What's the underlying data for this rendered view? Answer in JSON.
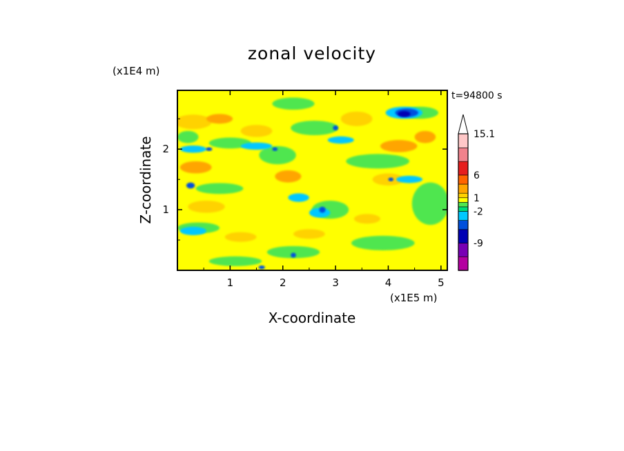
{
  "chart_data": {
    "type": "heatmap",
    "title": "zonal velocity",
    "xlabel": "X-coordinate",
    "ylabel": "Z-coordinate",
    "x_scale_label": "(x1E5 m)",
    "y_scale_label": "(x1E4 m)",
    "time_label": "t=94800 s",
    "x_ticks": [
      "1",
      "2",
      "3",
      "4",
      "5"
    ],
    "y_ticks": [
      "1",
      "2"
    ],
    "xlim": [
      0,
      5.12
    ],
    "ylim": [
      0,
      2.97
    ],
    "x_tick_values": [
      1,
      2,
      3,
      4,
      5
    ],
    "y_tick_values": [
      1,
      2
    ],
    "colorbar": {
      "labels": [
        "15.1",
        "6",
        "1",
        "-2",
        "-9"
      ],
      "label_values": [
        15.1,
        6,
        1,
        -2,
        -9
      ],
      "levels": [
        -15,
        -12,
        -9,
        -6,
        -4,
        -2,
        -1,
        0,
        1,
        2,
        4,
        6,
        9,
        12,
        15.1
      ],
      "colors": [
        "#e600b4",
        "#b400a0",
        "#7800b4",
        "#0000b4",
        "#0050dc",
        "#00c8ff",
        "#00dc78",
        "#50e650",
        "#ffff00",
        "#ffd200",
        "#ffa500",
        "#ff6400",
        "#e61e1e",
        "#f0828c",
        "#ffc8c8"
      ],
      "extend": "max"
    },
    "field": {
      "background_color": "#ffff00",
      "patches": [
        {
          "x": 0.3,
          "z": 2.45,
          "rx": 0.35,
          "rz": 0.12,
          "color": "#ffd200"
        },
        {
          "x": 0.8,
          "z": 2.5,
          "rx": 0.25,
          "rz": 0.08,
          "color": "#ffa500"
        },
        {
          "x": 0.35,
          "z": 1.7,
          "rx": 0.3,
          "rz": 0.1,
          "color": "#ffa500"
        },
        {
          "x": 0.55,
          "z": 1.05,
          "rx": 0.35,
          "rz": 0.1,
          "color": "#ffd200"
        },
        {
          "x": 1.5,
          "z": 2.3,
          "rx": 0.3,
          "rz": 0.1,
          "color": "#ffd200"
        },
        {
          "x": 2.1,
          "z": 1.55,
          "rx": 0.25,
          "rz": 0.1,
          "color": "#ffa500"
        },
        {
          "x": 2.5,
          "z": 0.6,
          "rx": 0.3,
          "rz": 0.08,
          "color": "#ffd200"
        },
        {
          "x": 3.4,
          "z": 2.5,
          "rx": 0.3,
          "rz": 0.12,
          "color": "#ffd200"
        },
        {
          "x": 4.2,
          "z": 2.05,
          "rx": 0.35,
          "rz": 0.1,
          "color": "#ffa500"
        },
        {
          "x": 4.7,
          "z": 2.2,
          "rx": 0.2,
          "rz": 0.1,
          "color": "#ffa500"
        },
        {
          "x": 4.0,
          "z": 1.5,
          "rx": 0.3,
          "rz": 0.1,
          "color": "#ffd200"
        },
        {
          "x": 3.6,
          "z": 0.85,
          "rx": 0.25,
          "rz": 0.08,
          "color": "#ffd200"
        },
        {
          "x": 1.2,
          "z": 0.55,
          "rx": 0.3,
          "rz": 0.08,
          "color": "#ffd200"
        },
        {
          "x": 0.2,
          "z": 2.2,
          "rx": 0.2,
          "rz": 0.1,
          "color": "#50e650"
        },
        {
          "x": 1.0,
          "z": 2.1,
          "rx": 0.4,
          "rz": 0.09,
          "color": "#50e650"
        },
        {
          "x": 0.8,
          "z": 1.35,
          "rx": 0.45,
          "rz": 0.09,
          "color": "#50e650"
        },
        {
          "x": 0.4,
          "z": 0.7,
          "rx": 0.4,
          "rz": 0.09,
          "color": "#50e650"
        },
        {
          "x": 1.9,
          "z": 1.9,
          "rx": 0.35,
          "rz": 0.15,
          "color": "#50e650"
        },
        {
          "x": 2.6,
          "z": 2.35,
          "rx": 0.45,
          "rz": 0.12,
          "color": "#50e650"
        },
        {
          "x": 3.8,
          "z": 1.8,
          "rx": 0.6,
          "rz": 0.12,
          "color": "#50e650"
        },
        {
          "x": 4.8,
          "z": 1.1,
          "rx": 0.35,
          "rz": 0.35,
          "color": "#50e650"
        },
        {
          "x": 3.9,
          "z": 0.45,
          "rx": 0.6,
          "rz": 0.12,
          "color": "#50e650"
        },
        {
          "x": 2.2,
          "z": 0.3,
          "rx": 0.5,
          "rz": 0.1,
          "color": "#50e650"
        },
        {
          "x": 1.1,
          "z": 0.15,
          "rx": 0.5,
          "rz": 0.08,
          "color": "#50e650"
        },
        {
          "x": 2.9,
          "z": 1.0,
          "rx": 0.35,
          "rz": 0.15,
          "color": "#50e650"
        },
        {
          "x": 4.6,
          "z": 2.6,
          "rx": 0.35,
          "rz": 0.1,
          "color": "#50e650"
        },
        {
          "x": 2.2,
          "z": 2.75,
          "rx": 0.4,
          "rz": 0.1,
          "color": "#50e650"
        },
        {
          "x": 0.3,
          "z": 2.0,
          "rx": 0.25,
          "rz": 0.06,
          "color": "#00c8ff"
        },
        {
          "x": 1.5,
          "z": 2.05,
          "rx": 0.3,
          "rz": 0.06,
          "color": "#00c8ff"
        },
        {
          "x": 0.3,
          "z": 0.65,
          "rx": 0.25,
          "rz": 0.07,
          "color": "#00c8ff"
        },
        {
          "x": 2.3,
          "z": 1.2,
          "rx": 0.2,
          "rz": 0.07,
          "color": "#00c8ff"
        },
        {
          "x": 3.1,
          "z": 2.15,
          "rx": 0.25,
          "rz": 0.06,
          "color": "#00c8ff"
        },
        {
          "x": 4.3,
          "z": 2.6,
          "rx": 0.35,
          "rz": 0.1,
          "color": "#00c8ff"
        },
        {
          "x": 4.4,
          "z": 1.5,
          "rx": 0.25,
          "rz": 0.06,
          "color": "#00c8ff"
        },
        {
          "x": 2.7,
          "z": 0.95,
          "rx": 0.2,
          "rz": 0.08,
          "color": "#00c8ff"
        },
        {
          "x": 4.35,
          "z": 2.6,
          "rx": 0.22,
          "rz": 0.07,
          "color": "#0050dc"
        },
        {
          "x": 4.3,
          "z": 2.58,
          "rx": 0.12,
          "rz": 0.05,
          "color": "#0000b4"
        },
        {
          "x": 0.25,
          "z": 1.4,
          "rx": 0.08,
          "rz": 0.05,
          "color": "#0050dc"
        },
        {
          "x": 0.6,
          "z": 2.0,
          "rx": 0.06,
          "rz": 0.03,
          "color": "#0050dc"
        },
        {
          "x": 1.85,
          "z": 2.0,
          "rx": 0.05,
          "rz": 0.03,
          "color": "#0050dc"
        },
        {
          "x": 2.75,
          "z": 1.0,
          "rx": 0.06,
          "rz": 0.05,
          "color": "#0050dc"
        },
        {
          "x": 2.2,
          "z": 0.25,
          "rx": 0.05,
          "rz": 0.04,
          "color": "#0050dc"
        },
        {
          "x": 3.0,
          "z": 2.35,
          "rx": 0.05,
          "rz": 0.04,
          "color": "#0050dc"
        },
        {
          "x": 4.05,
          "z": 1.5,
          "rx": 0.05,
          "rz": 0.03,
          "color": "#0050dc"
        },
        {
          "x": 1.6,
          "z": 0.05,
          "rx": 0.06,
          "rz": 0.03,
          "color": "#0050dc"
        }
      ]
    }
  }
}
